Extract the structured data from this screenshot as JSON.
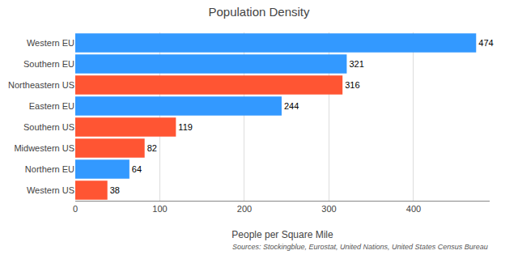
{
  "chart_data": {
    "type": "bar",
    "orientation": "horizontal",
    "title": "Population Density",
    "xlabel": "People per Square Mile",
    "annotations": [
      "Sources: Stockingblue, Eurostat, United Nations, United States Census Bureau"
    ],
    "categories": [
      "Western EU",
      "Southern EU",
      "Northeastern US",
      "Eastern EU",
      "Southern US",
      "Midwestern US",
      "Northern EU",
      "Western US"
    ],
    "values": [
      474,
      321,
      316,
      244,
      119,
      82,
      64,
      38
    ],
    "colors": [
      "#3399ff",
      "#3399ff",
      "#ff5533",
      "#3399ff",
      "#ff5533",
      "#ff5533",
      "#3399ff",
      "#ff5533"
    ],
    "xlim": [
      0,
      490
    ],
    "xticks": [
      0,
      100,
      200,
      300,
      400
    ],
    "grid": true,
    "data_labels": true
  }
}
